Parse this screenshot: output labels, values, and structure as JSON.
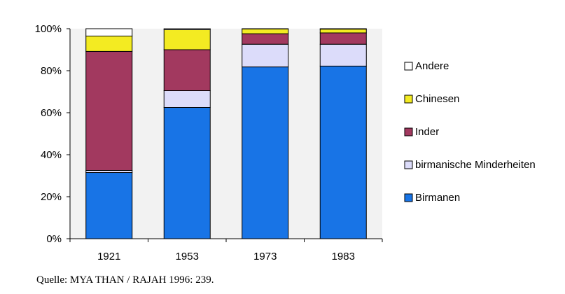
{
  "chart_data": {
    "type": "bar",
    "stacked": true,
    "percent": true,
    "categories": [
      "1921",
      "1953",
      "1973",
      "1983"
    ],
    "series": [
      {
        "name": "Birmanen",
        "color": "#1874e6",
        "values": [
          31.5,
          62.5,
          81.8,
          82.2
        ]
      },
      {
        "name": "birmanische Minderheiten",
        "color": "#dcdcfa",
        "values": [
          1,
          8,
          10.8,
          10.4
        ]
      },
      {
        "name": "Inder",
        "color": "#a2395f",
        "values": [
          56.7,
          19.5,
          5,
          5.4
        ]
      },
      {
        "name": "Chinesen",
        "color": "#f3eb22",
        "values": [
          7.3,
          9.5,
          2.3,
          1.8
        ]
      },
      {
        "name": "Andere",
        "color": "#ffffff",
        "values": [
          3.5,
          0.5,
          0.1,
          0.2
        ]
      }
    ],
    "yticks": [
      "0%",
      "20%",
      "40%",
      "60%",
      "80%",
      "100%"
    ],
    "ylim": [
      0,
      100
    ],
    "grid": false,
    "legend_position": "right",
    "plot_background": "#f2f2f2"
  },
  "source_note": "Quelle: MYA THAN / RAJAH 1996: 239."
}
